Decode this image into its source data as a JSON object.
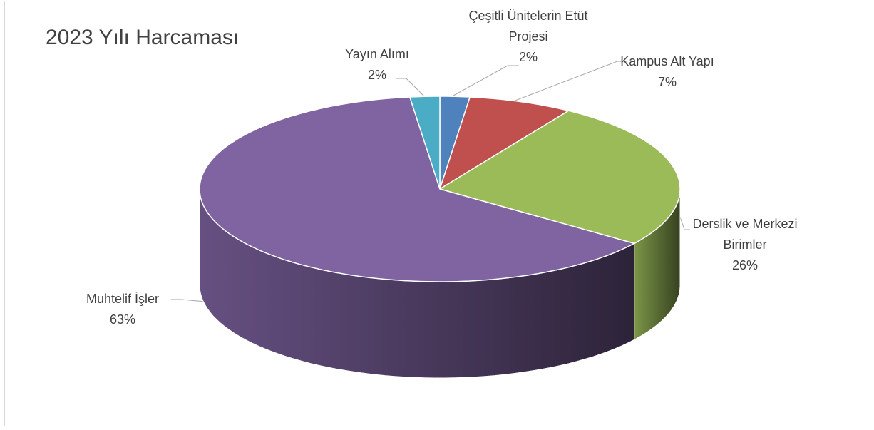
{
  "chart_data": {
    "type": "pie",
    "title": "2023 Yılı Harcaması",
    "categories": [
      "Çeşitli Ünitelerin Etüt Projesi",
      "Kampus Alt Yapı",
      "Derslik ve Merkezi Birimler",
      "Muhtelif İşler",
      "Yayın Alımı"
    ],
    "values": [
      2,
      7,
      26,
      63,
      2
    ],
    "value_labels": [
      "2%",
      "7%",
      "26%",
      "63%",
      "2%"
    ],
    "colors": [
      "#4f81bd",
      "#c0504d",
      "#9bbb59",
      "#8064a2",
      "#4bacc6"
    ]
  }
}
